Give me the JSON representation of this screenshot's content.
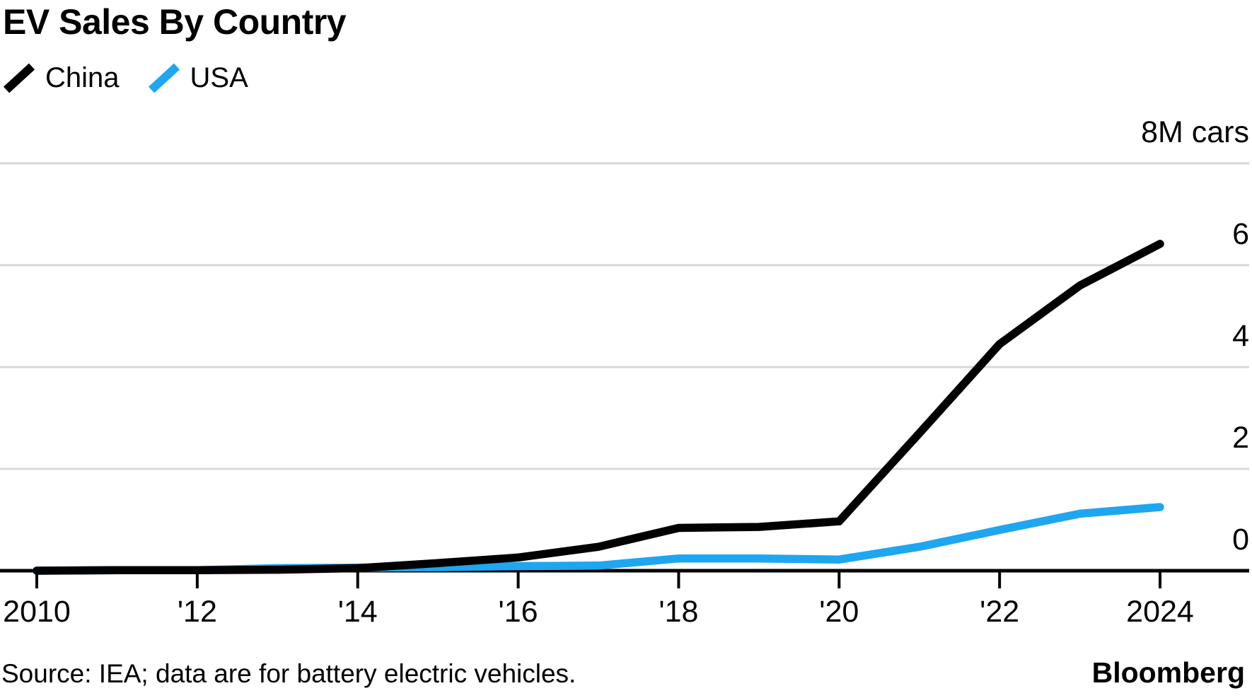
{
  "header": {
    "title": "EV Sales By Country"
  },
  "legend": [
    {
      "label": "China",
      "color": "#000000"
    },
    {
      "label": "USA",
      "color": "#1FA6F0"
    }
  ],
  "footer": {
    "source": "Source: IEA; data are for battery electric vehicles.",
    "brand": "Bloomberg"
  },
  "chart_data": {
    "type": "line",
    "title": "EV Sales By Country",
    "unit_top_label": "8M cars",
    "x": [
      2010,
      2011,
      2012,
      2013,
      2014,
      2015,
      2016,
      2017,
      2018,
      2019,
      2020,
      2021,
      2022,
      2023,
      2024
    ],
    "x_ticks": [
      {
        "year": 2010,
        "label": "2010"
      },
      {
        "year": 2012,
        "label": "'12"
      },
      {
        "year": 2014,
        "label": "'14"
      },
      {
        "year": 2016,
        "label": "'16"
      },
      {
        "year": 2018,
        "label": "'18"
      },
      {
        "year": 2020,
        "label": "'20"
      },
      {
        "year": 2022,
        "label": "'22"
      },
      {
        "year": 2024,
        "label": "2024"
      }
    ],
    "y_ticks": [
      {
        "value": 0,
        "label": "0"
      },
      {
        "value": 2,
        "label": "2"
      },
      {
        "value": 4,
        "label": "4"
      },
      {
        "value": 6,
        "label": "6"
      },
      {
        "value": 8,
        "label": "8M cars"
      }
    ],
    "ylim": [
      0,
      8
    ],
    "grid": "horizontal",
    "grid_color": "#D8D8D8",
    "axis_color": "#000000",
    "legend_position": "top-left",
    "series": [
      {
        "name": "USA",
        "color": "#1FA6F0",
        "values": [
          0.0,
          0.01,
          0.01,
          0.05,
          0.06,
          0.07,
          0.09,
          0.1,
          0.24,
          0.24,
          0.22,
          0.47,
          0.8,
          1.12,
          1.25
        ]
      },
      {
        "name": "China",
        "color": "#000000",
        "values": [
          0.0,
          0.01,
          0.01,
          0.02,
          0.05,
          0.15,
          0.26,
          0.47,
          0.84,
          0.86,
          0.97,
          2.7,
          4.45,
          5.6,
          6.42
        ]
      }
    ]
  }
}
